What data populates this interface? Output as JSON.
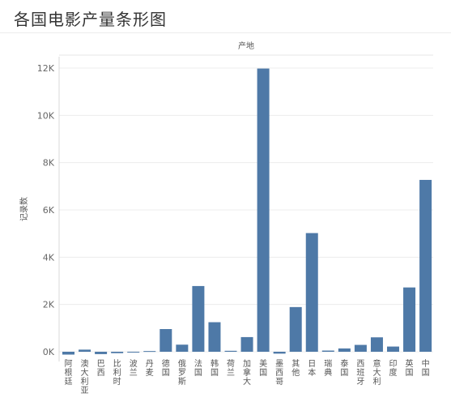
{
  "page": {
    "title": "各国电影产量条形图"
  },
  "chart_data": {
    "type": "bar",
    "title": "各国电影产量条形图",
    "column_header": "产地",
    "ylabel": "记录数",
    "xlabel": "",
    "ylim": [
      0,
      12000
    ],
    "yticks": [
      0,
      2000,
      4000,
      6000,
      8000,
      10000,
      12000
    ],
    "ytick_labels": [
      "0K",
      "2K",
      "4K",
      "6K",
      "8K",
      "10K",
      "12K"
    ],
    "grid": true,
    "legend": "none",
    "bar_color": "#4e79a7",
    "categories": [
      "阿根廷",
      "澳大利亚",
      "巴西",
      "比利时",
      "波兰",
      "丹麦",
      "德国",
      "俄罗斯",
      "法国",
      "韩国",
      "荷兰",
      "加拿大",
      "美国",
      "墨西哥",
      "其他",
      "日本",
      "瑞典",
      "泰国",
      "西班牙",
      "意大利",
      "印度",
      "英国",
      "中国"
    ],
    "values": [
      -120,
      90,
      -100,
      -60,
      -20,
      30,
      960,
      300,
      2780,
      1250,
      40,
      620,
      11980,
      -80,
      1890,
      5020,
      50,
      140,
      290,
      610,
      220,
      2720,
      7270
    ]
  }
}
